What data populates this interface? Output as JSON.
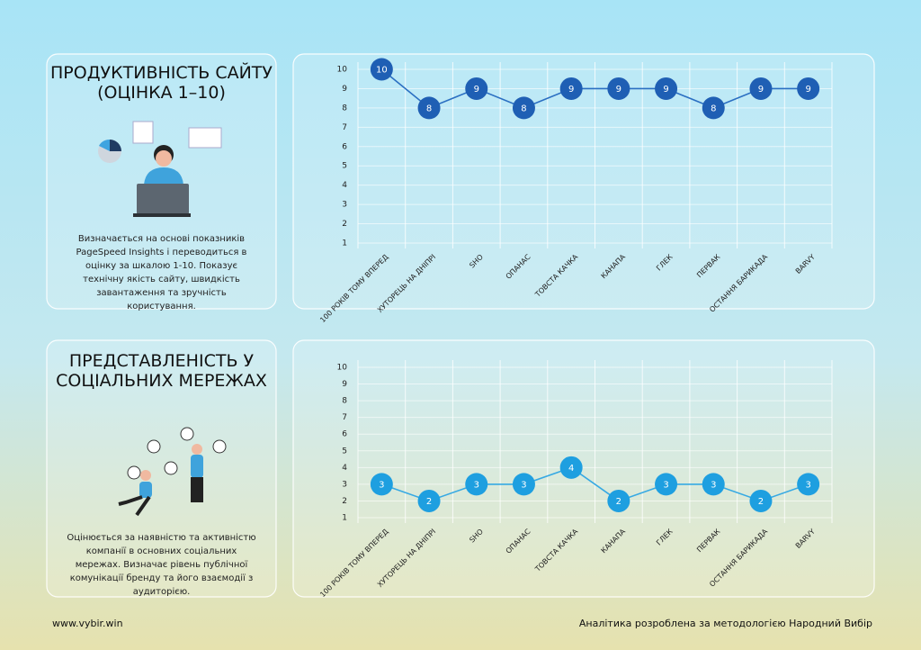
{
  "panels": [
    {
      "title": "ПРОДУКТИВНІСТЬ САЙТУ (ОЦІНКА 1–10)",
      "description": "Визначається на основі показників PageSpeed Insights і переводиться в оцінку за шкалою 1-10. Показує технічну якість сайту, швидкість завантаження та зручність користування."
    },
    {
      "title": "ПРЕДСТАВЛЕНІСТЬ У СОЦІАЛЬНИХ МЕРЕЖАХ",
      "description": "Оцінюється за наявністю та активністю компанії в основних соціальних мережах. Визначає рівень публічної комунікації бренду та його взаємодії з аудиторією."
    }
  ],
  "footer": {
    "site": "www.vybir.win",
    "note": "Аналітика розроблена за методологією  Народний Вибір"
  },
  "chart_data": [
    {
      "type": "line",
      "color": "#1f5fb4",
      "line_color": "#2b6fc2",
      "grid": true,
      "categories": [
        "100 РОКІВ ТОМУ ВПЕРЕД",
        "ХУТОРЕЦЬ НА ДНІПРІ",
        "SHO",
        "ОПАНАС",
        "ТОВСТА КАЧКА",
        "КАНАПА",
        "ГЛЕК",
        "ПЕРВАК",
        "ОСТАННЯ БАРИКАДА",
        "BARVY"
      ],
      "values": [
        10,
        8,
        9,
        8,
        9,
        9,
        9,
        8,
        9,
        9
      ],
      "ylim": [
        1,
        10
      ],
      "yticks": [
        1,
        2,
        3,
        4,
        5,
        6,
        7,
        8,
        9,
        10
      ]
    },
    {
      "type": "line",
      "color": "#1e9fe0",
      "line_color": "#36a9e3",
      "grid": true,
      "categories": [
        "100 РОКІВ ТОМУ ВПЕРЕД",
        "ХУТОРЕЦЬ НА ДНІПРІ",
        "SHO",
        "ОПАНАС",
        "ТОВСТА КАЧКА",
        "КАНАПА",
        "ГЛЕК",
        "ПЕРВАК",
        "ОСТАННЯ БАРИКАДА",
        "BARVY"
      ],
      "values": [
        3,
        2,
        3,
        3,
        4,
        2,
        3,
        3,
        2,
        3
      ],
      "ylim": [
        1,
        10
      ],
      "yticks": [
        1,
        2,
        3,
        4,
        5,
        6,
        7,
        8,
        9,
        10
      ]
    }
  ]
}
